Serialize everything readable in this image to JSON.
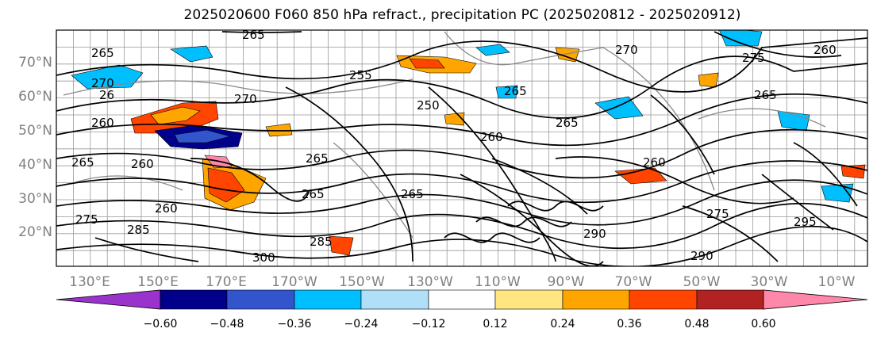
{
  "title": "2025020600 F060 850 hPa refract., precipitation PC (2025020812 - 2025020912)",
  "lat_labels": [
    "70°N",
    "60°N",
    "50°N",
    "40°N",
    "30°N",
    "20°N"
  ],
  "lon_labels": [
    "130°E",
    "150°E",
    "170°E",
    "170°W",
    "150°W",
    "130°W",
    "110°W",
    "90°W",
    "70°W",
    "50°W",
    "30°W",
    "10°W"
  ],
  "contour_labels": [
    "265",
    "265",
    "270",
    "270",
    "26",
    "260",
    "265",
    "255",
    "250",
    "265",
    "265",
    "260",
    "270",
    "275",
    "260",
    "265",
    "260",
    "265",
    "285",
    "260",
    "265",
    "275",
    "285",
    "290",
    "295",
    "300",
    "265",
    "260",
    "275",
    "290"
  ],
  "colorbar": {
    "colors": [
      "#9933cc",
      "#00008b",
      "#3355cc",
      "#00bfff",
      "#b0e0f8",
      "#ffffff",
      "#ffe680",
      "#ffa500",
      "#ff4500",
      "#b22222",
      "#ff88aa"
    ],
    "tick_labels": [
      "−0.60",
      "−0.48",
      "−0.36",
      "−0.24",
      "−0.12",
      "0.12",
      "0.24",
      "0.36",
      "0.48",
      "0.60"
    ]
  }
}
